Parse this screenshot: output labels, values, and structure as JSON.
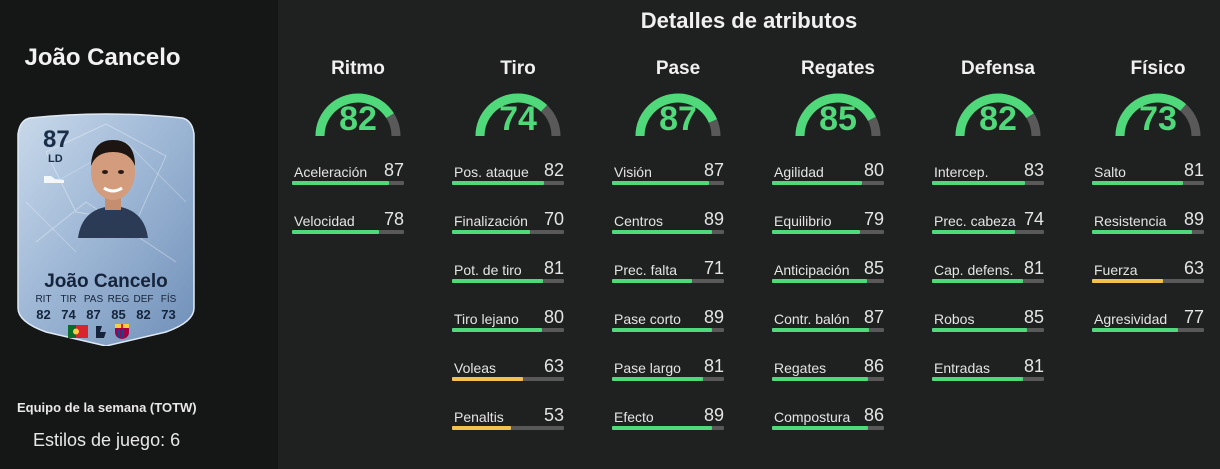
{
  "player": {
    "name": "João Cancelo",
    "card": {
      "rating": "87",
      "position": "LD",
      "name": "João Cancelo",
      "stat_labels": [
        "RIT",
        "TIR",
        "PAS",
        "REG",
        "DEF",
        "FÍS"
      ],
      "stat_values": [
        "82",
        "74",
        "87",
        "85",
        "82",
        "73"
      ],
      "league_text": "LALIGA"
    },
    "team_label": "Equipo de la semana (TOTW)",
    "styles_label": "Estilos de juego: 6"
  },
  "colors": {
    "high": "#4fd97a",
    "mid": "#f2c14e",
    "track": "#595959"
  },
  "section_title": "Detalles de atributos",
  "groups": [
    {
      "title": "Ritmo",
      "value": 82,
      "attrs": [
        {
          "name": "Aceleración",
          "value": 87
        },
        {
          "name": "Velocidad",
          "value": 78
        }
      ]
    },
    {
      "title": "Tiro",
      "value": 74,
      "attrs": [
        {
          "name": "Pos. ataque",
          "value": 82
        },
        {
          "name": "Finalización",
          "value": 70
        },
        {
          "name": "Pot. de tiro",
          "value": 81
        },
        {
          "name": "Tiro lejano",
          "value": 80
        },
        {
          "name": "Voleas",
          "value": 63
        },
        {
          "name": "Penaltis",
          "value": 53
        }
      ]
    },
    {
      "title": "Pase",
      "value": 87,
      "attrs": [
        {
          "name": "Visión",
          "value": 87
        },
        {
          "name": "Centros",
          "value": 89
        },
        {
          "name": "Prec. falta",
          "value": 71
        },
        {
          "name": "Pase corto",
          "value": 89
        },
        {
          "name": "Pase largo",
          "value": 81
        },
        {
          "name": "Efecto",
          "value": 89
        }
      ]
    },
    {
      "title": "Regates",
      "value": 85,
      "attrs": [
        {
          "name": "Agilidad",
          "value": 80
        },
        {
          "name": "Equilibrio",
          "value": 79
        },
        {
          "name": "Anticipación",
          "value": 85
        },
        {
          "name": "Contr. balón",
          "value": 87
        },
        {
          "name": "Regates",
          "value": 86
        },
        {
          "name": "Compostura",
          "value": 86
        }
      ]
    },
    {
      "title": "Defensa",
      "value": 82,
      "attrs": [
        {
          "name": "Intercep.",
          "value": 83
        },
        {
          "name": "Prec. cabeza",
          "value": 74
        },
        {
          "name": "Cap. defens.",
          "value": 81
        },
        {
          "name": "Robos",
          "value": 85
        },
        {
          "name": "Entradas",
          "value": 81
        }
      ]
    },
    {
      "title": "Físico",
      "value": 73,
      "attrs": [
        {
          "name": "Salto",
          "value": 81
        },
        {
          "name": "Resistencia",
          "value": 89
        },
        {
          "name": "Fuerza",
          "value": 63
        },
        {
          "name": "Agresividad",
          "value": 77
        }
      ]
    }
  ]
}
